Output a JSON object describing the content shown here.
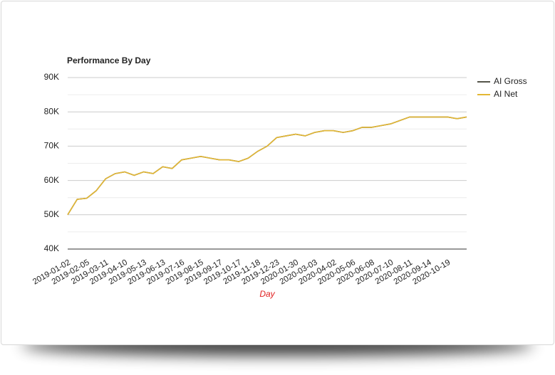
{
  "chart_data": {
    "type": "line",
    "title": "Performance By Day",
    "x_label": "Day",
    "categories": [
      "2019-01-02",
      null,
      "2019-02-05",
      null,
      "2019-03-11",
      null,
      "2019-04-10",
      null,
      "2019-05-13",
      null,
      "2019-06-13",
      null,
      "2019-07-16",
      null,
      "2019-08-15",
      null,
      "2019-09-17",
      null,
      "2019-10-17",
      null,
      "2019-11-18",
      null,
      "2019-12-23",
      null,
      "2020-01-30",
      null,
      "2020-03-03",
      null,
      "2020-04-02",
      null,
      "2020-05-06",
      null,
      "2020-06-08",
      null,
      "2020-07-10",
      null,
      "2020-08-11",
      null,
      "2020-09-14",
      null,
      "2020-10-19",
      null,
      null
    ],
    "series": [
      {
        "name": "AI Gross",
        "color": "#55554a",
        "values": [
          50000,
          54500,
          54800,
          57000,
          60500,
          62000,
          62500,
          61500,
          62500,
          62000,
          64000,
          63500,
          66000,
          66500,
          67000,
          66500,
          66000,
          66000,
          65500,
          66500,
          68500,
          70000,
          72500,
          73000,
          73500,
          73000,
          74000,
          74500,
          74500,
          74000,
          74500,
          75500,
          75500,
          76000,
          76500,
          77500,
          78500,
          78500,
          78500,
          78500,
          78500,
          78000,
          78500
        ]
      },
      {
        "name": "AI Net",
        "color": "#e3b733",
        "values": [
          50000,
          54500,
          54800,
          57000,
          60500,
          62000,
          62500,
          61500,
          62500,
          62000,
          64000,
          63500,
          66000,
          66500,
          67000,
          66500,
          66000,
          66000,
          65500,
          66500,
          68500,
          70000,
          72500,
          73000,
          73500,
          73000,
          74000,
          74500,
          74500,
          74000,
          74500,
          75500,
          75500,
          76000,
          76500,
          77500,
          78500,
          78500,
          78500,
          78500,
          78500,
          78000,
          78500
        ]
      }
    ],
    "ylim": [
      40000,
      90000
    ],
    "yticks": [
      {
        "value": 40000,
        "label": "40K"
      },
      {
        "value": 50000,
        "label": "50K"
      },
      {
        "value": 60000,
        "label": "60K"
      },
      {
        "value": 70000,
        "label": "70K"
      },
      {
        "value": 80000,
        "label": "80K"
      },
      {
        "value": 90000,
        "label": "90K"
      }
    ],
    "y_minor_ticks": [
      45000,
      55000,
      65000,
      75000,
      85000
    ],
    "grid": true,
    "legend": "right"
  }
}
